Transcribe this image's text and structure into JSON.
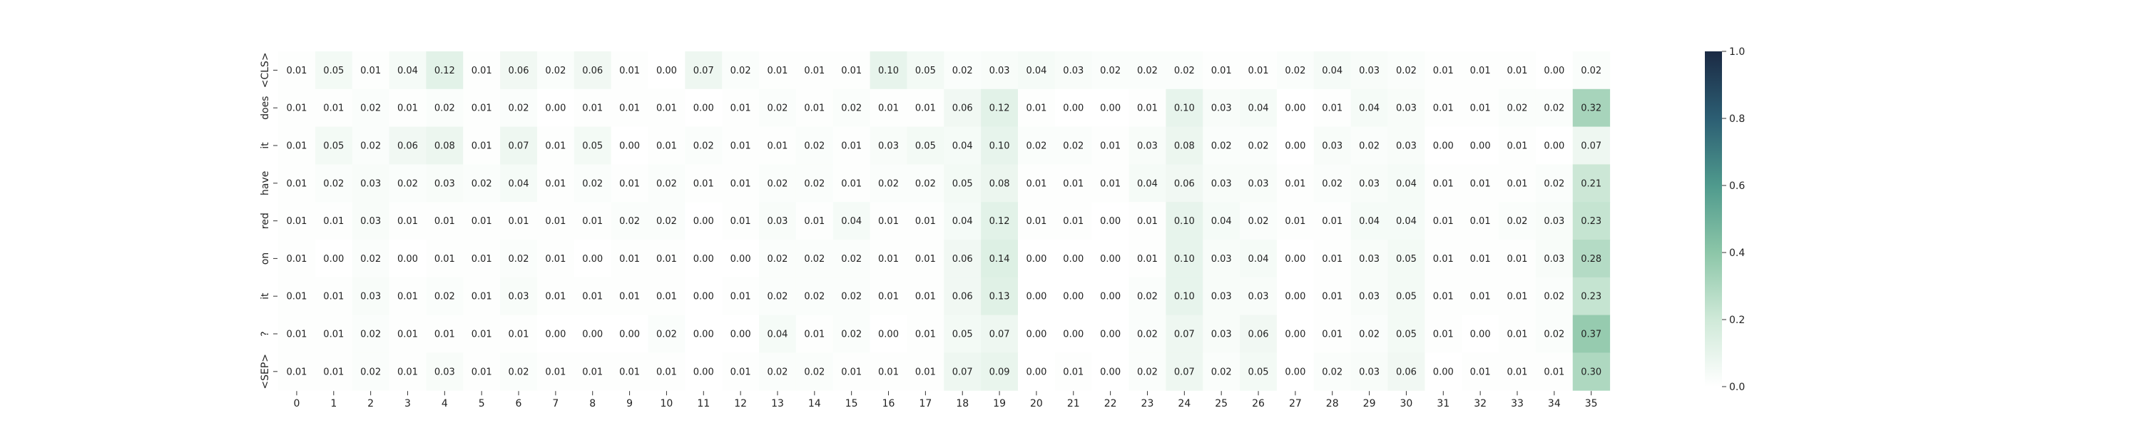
{
  "chart_data": {
    "type": "heatmap",
    "title": "",
    "xlabel": "",
    "ylabel": "",
    "x_categories": [
      "0",
      "1",
      "2",
      "3",
      "4",
      "5",
      "6",
      "7",
      "8",
      "9",
      "10",
      "11",
      "12",
      "13",
      "14",
      "15",
      "16",
      "17",
      "18",
      "19",
      "20",
      "21",
      "22",
      "23",
      "24",
      "25",
      "26",
      "27",
      "28",
      "29",
      "30",
      "31",
      "32",
      "33",
      "34",
      "35"
    ],
    "y_categories": [
      "<CLS>",
      "does",
      "it",
      "have",
      "red",
      "on",
      "it",
      "?",
      "<SEP>"
    ],
    "values": [
      [
        0.01,
        0.05,
        0.01,
        0.04,
        0.12,
        0.01,
        0.06,
        0.02,
        0.06,
        0.01,
        0.0,
        0.07,
        0.02,
        0.01,
        0.01,
        0.01,
        0.1,
        0.05,
        0.02,
        0.03,
        0.04,
        0.03,
        0.02,
        0.02,
        0.02,
        0.01,
        0.01,
        0.02,
        0.04,
        0.03,
        0.02,
        0.01,
        0.01,
        0.01,
        0.0,
        0.02
      ],
      [
        0.01,
        0.01,
        0.02,
        0.01,
        0.02,
        0.01,
        0.02,
        0.0,
        0.01,
        0.01,
        0.01,
        0.0,
        0.01,
        0.02,
        0.01,
        0.02,
        0.01,
        0.01,
        0.06,
        0.12,
        0.01,
        0.0,
        0.0,
        0.01,
        0.1,
        0.03,
        0.04,
        0.0,
        0.01,
        0.04,
        0.03,
        0.01,
        0.01,
        0.02,
        0.02,
        0.32
      ],
      [
        0.01,
        0.05,
        0.02,
        0.06,
        0.08,
        0.01,
        0.07,
        0.01,
        0.05,
        0.0,
        0.01,
        0.02,
        0.01,
        0.01,
        0.02,
        0.01,
        0.03,
        0.05,
        0.04,
        0.1,
        0.02,
        0.02,
        0.01,
        0.03,
        0.08,
        0.02,
        0.02,
        0.0,
        0.03,
        0.02,
        0.03,
        0.0,
        0.0,
        0.01,
        0.0,
        0.07
      ],
      [
        0.01,
        0.02,
        0.03,
        0.02,
        0.03,
        0.02,
        0.04,
        0.01,
        0.02,
        0.01,
        0.02,
        0.01,
        0.01,
        0.02,
        0.02,
        0.01,
        0.02,
        0.02,
        0.05,
        0.08,
        0.01,
        0.01,
        0.01,
        0.04,
        0.06,
        0.03,
        0.03,
        0.01,
        0.02,
        0.03,
        0.04,
        0.01,
        0.01,
        0.01,
        0.02,
        0.21
      ],
      [
        0.01,
        0.01,
        0.03,
        0.01,
        0.01,
        0.01,
        0.01,
        0.01,
        0.01,
        0.02,
        0.02,
        0.0,
        0.01,
        0.03,
        0.01,
        0.04,
        0.01,
        0.01,
        0.04,
        0.12,
        0.01,
        0.01,
        0.0,
        0.01,
        0.1,
        0.04,
        0.02,
        0.01,
        0.01,
        0.04,
        0.04,
        0.01,
        0.01,
        0.02,
        0.03,
        0.23
      ],
      [
        0.01,
        0.0,
        0.02,
        0.0,
        0.01,
        0.01,
        0.02,
        0.01,
        0.0,
        0.01,
        0.01,
        0.0,
        0.0,
        0.02,
        0.02,
        0.02,
        0.01,
        0.01,
        0.06,
        0.14,
        0.0,
        0.0,
        0.0,
        0.01,
        0.1,
        0.03,
        0.04,
        0.0,
        0.01,
        0.03,
        0.05,
        0.01,
        0.01,
        0.01,
        0.03,
        0.28
      ],
      [
        0.01,
        0.01,
        0.03,
        0.01,
        0.02,
        0.01,
        0.03,
        0.01,
        0.01,
        0.01,
        0.01,
        0.0,
        0.01,
        0.02,
        0.02,
        0.02,
        0.01,
        0.01,
        0.06,
        0.13,
        0.0,
        0.0,
        0.0,
        0.02,
        0.1,
        0.03,
        0.03,
        0.0,
        0.01,
        0.03,
        0.05,
        0.01,
        0.01,
        0.01,
        0.02,
        0.23
      ],
      [
        0.01,
        0.01,
        0.02,
        0.01,
        0.01,
        0.01,
        0.01,
        0.0,
        0.0,
        0.0,
        0.02,
        0.0,
        0.0,
        0.04,
        0.01,
        0.02,
        0.0,
        0.01,
        0.05,
        0.07,
        0.0,
        0.0,
        0.0,
        0.02,
        0.07,
        0.03,
        0.06,
        0.0,
        0.01,
        0.02,
        0.05,
        0.01,
        0.0,
        0.01,
        0.02,
        0.37
      ],
      [
        0.01,
        0.01,
        0.02,
        0.01,
        0.03,
        0.01,
        0.02,
        0.01,
        0.01,
        0.01,
        0.01,
        0.0,
        0.01,
        0.02,
        0.02,
        0.01,
        0.01,
        0.01,
        0.07,
        0.09,
        0.0,
        0.01,
        0.0,
        0.02,
        0.07,
        0.02,
        0.05,
        0.0,
        0.02,
        0.03,
        0.06,
        0.0,
        0.01,
        0.01,
        0.01,
        0.3
      ]
    ],
    "value_range": [
      0.0,
      1.0
    ],
    "colorbar": {
      "ticks": [
        "0.0",
        "0.2",
        "0.4",
        "0.6",
        "0.8",
        "1.0"
      ],
      "colormap": [
        "#ffffff",
        "#cfe9d8",
        "#8cc6a8",
        "#4f9a8d",
        "#2c5e73",
        "#1b2a44"
      ]
    },
    "grid": false,
    "legend": "colorbar-right"
  }
}
